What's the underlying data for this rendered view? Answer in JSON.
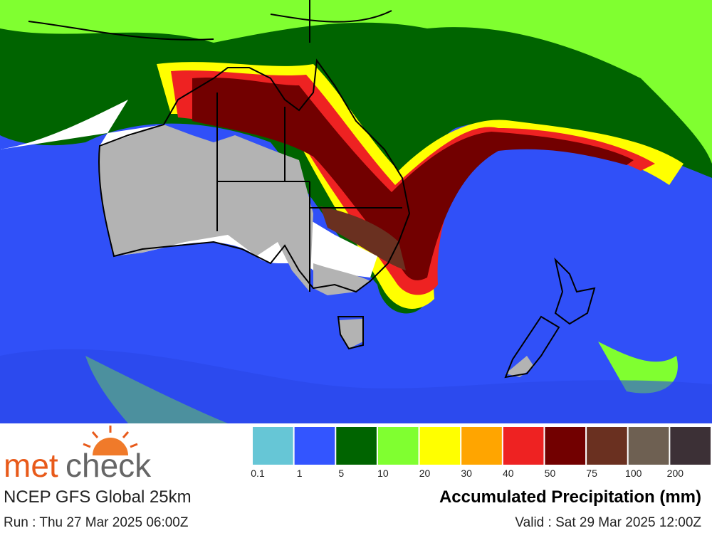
{
  "logo": {
    "part1": "met",
    "part2": "check"
  },
  "model": "NCEP GFS Global 25km",
  "run": "Run : Thu 27 Mar 2025 06:00Z",
  "valid": "Valid : Sat 29 Mar 2025 12:00Z",
  "legend": {
    "title": "Accumulated Precipitation (mm)",
    "items": [
      {
        "value": 0.1,
        "color": "#66c6d6"
      },
      {
        "value": 1,
        "color": "#3355ff"
      },
      {
        "value": 5,
        "color": "#006400"
      },
      {
        "value": 10,
        "color": "#80ff30"
      },
      {
        "value": 20,
        "color": "#ffff00"
      },
      {
        "value": 30,
        "color": "#ffa500"
      },
      {
        "value": 40,
        "color": "#ee2222"
      },
      {
        "value": 50,
        "color": "#720000"
      },
      {
        "value": 75,
        "color": "#6a3020"
      },
      {
        "value": 100,
        "color": "#6e6052"
      },
      {
        "value": 200,
        "color": "#3c3036"
      }
    ]
  }
}
